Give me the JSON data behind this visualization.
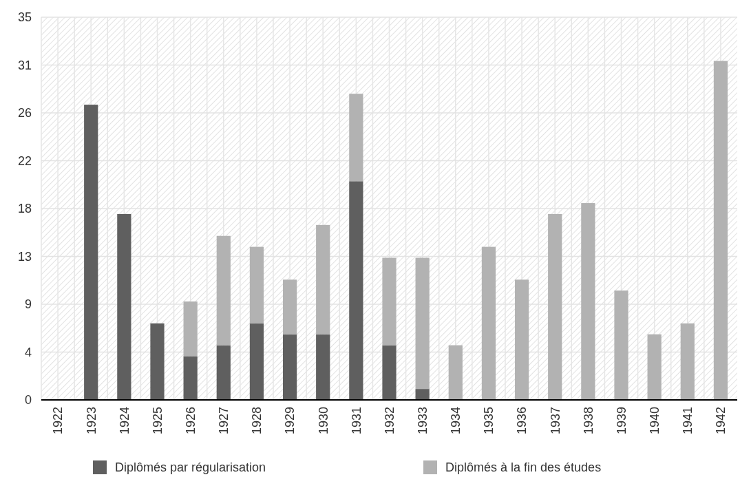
{
  "chart_data": {
    "type": "bar",
    "stacked": true,
    "categories": [
      "1922",
      "1923",
      "1924",
      "1925",
      "1926",
      "1927",
      "1928",
      "1929",
      "1930",
      "1931",
      "1932",
      "1933",
      "1934",
      "1935",
      "1936",
      "1937",
      "1938",
      "1939",
      "1940",
      "1941",
      "1942"
    ],
    "series": [
      {
        "name": "Diplômés par régularisation",
        "color": "#5f5f5f",
        "values": [
          0,
          27,
          17,
          7,
          4,
          5,
          7,
          6,
          6,
          20,
          5,
          1,
          0,
          0,
          0,
          0,
          0,
          0,
          0,
          0,
          0
        ]
      },
      {
        "name": "Diplômés à la fin des études",
        "color": "#b2b2b2",
        "values": [
          0,
          0,
          0,
          0,
          5,
          10,
          7,
          5,
          10,
          8,
          8,
          12,
          5,
          14,
          11,
          17,
          18,
          10,
          6,
          7,
          31
        ]
      }
    ],
    "ylim": [
      0,
      35
    ],
    "yticks": [
      0,
      {
        "value": 4.375,
        "label": "4"
      },
      {
        "value": 8.75,
        "label": "9"
      },
      {
        "value": 13.125,
        "label": "13"
      },
      {
        "value": 17.5,
        "label": "18"
      },
      {
        "value": 21.875,
        "label": "22"
      },
      {
        "value": 26.25,
        "label": "26"
      },
      {
        "value": 30.625,
        "label": "31"
      },
      35
    ],
    "grid": true,
    "legend": "bottom"
  }
}
